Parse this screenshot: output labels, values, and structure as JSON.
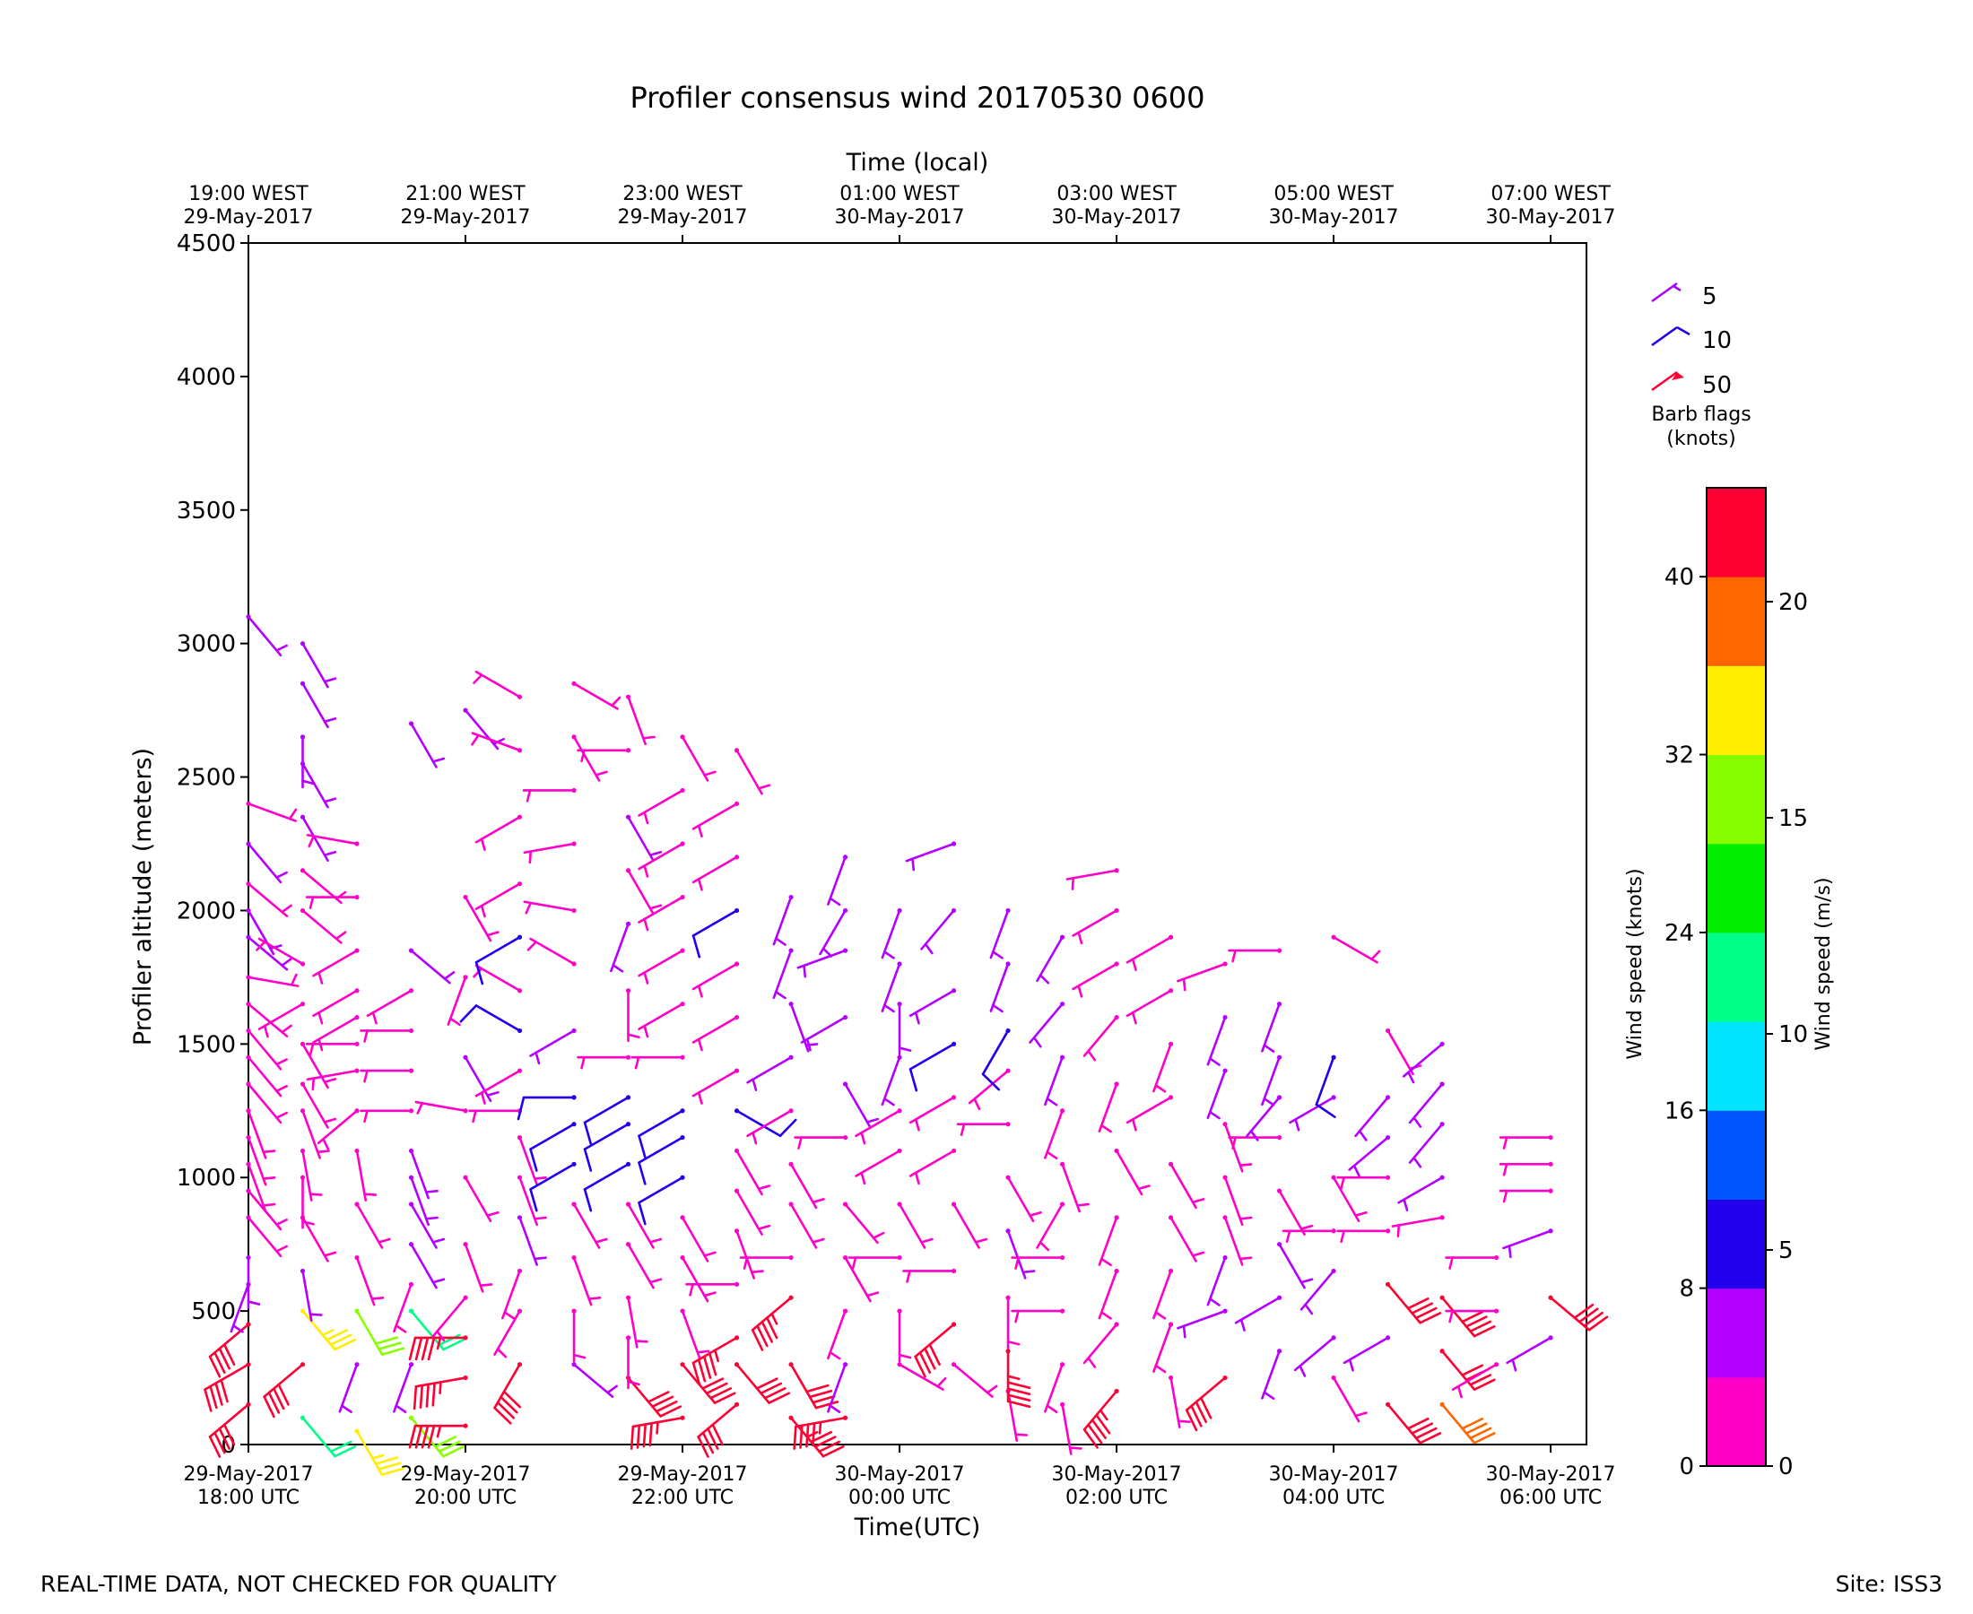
{
  "chart_data": {
    "type": "wind-barb",
    "title": "Profiler consensus wind 20170530 0600",
    "top_axis_label": "Time (local)",
    "xlabel": "Time(UTC)",
    "ylabel": "Profiler altitude (meters)",
    "x_unit": "hours since 29-May-2017 18:00 UTC",
    "xlim": [
      0,
      12.33
    ],
    "ylim": [
      0,
      4500
    ],
    "y_ticks": [
      "0",
      "500",
      "1000",
      "1500",
      "2000",
      "2500",
      "3000",
      "3500",
      "4000",
      "4500"
    ],
    "bottom_ticks": [
      {
        "x": 0,
        "line1": "29-May-2017",
        "line2": "18:00 UTC"
      },
      {
        "x": 2,
        "line1": "29-May-2017",
        "line2": "20:00 UTC"
      },
      {
        "x": 4,
        "line1": "29-May-2017",
        "line2": "22:00 UTC"
      },
      {
        "x": 6,
        "line1": "30-May-2017",
        "line2": "00:00 UTC"
      },
      {
        "x": 8,
        "line1": "30-May-2017",
        "line2": "02:00 UTC"
      },
      {
        "x": 10,
        "line1": "30-May-2017",
        "line2": "04:00 UTC"
      },
      {
        "x": 12,
        "line1": "30-May-2017",
        "line2": "06:00 UTC"
      }
    ],
    "top_ticks": [
      {
        "x": 0,
        "line1": "19:00 WEST",
        "line2": "29-May-2017"
      },
      {
        "x": 2,
        "line1": "21:00 WEST",
        "line2": "29-May-2017"
      },
      {
        "x": 4,
        "line1": "23:00 WEST",
        "line2": "29-May-2017"
      },
      {
        "x": 6,
        "line1": "01:00 WEST",
        "line2": "30-May-2017"
      },
      {
        "x": 8,
        "line1": "03:00 WEST",
        "line2": "30-May-2017"
      },
      {
        "x": 10,
        "line1": "05:00 WEST",
        "line2": "30-May-2017"
      },
      {
        "x": 12,
        "line1": "07:00 WEST",
        "line2": "30-May-2017"
      }
    ],
    "barb_legend": {
      "items": [
        {
          "label": "5",
          "speed": 5,
          "color": "#aa00ff"
        },
        {
          "label": "10",
          "speed": 10,
          "color": "#2200ee"
        },
        {
          "label": "50",
          "speed": 50,
          "color": "#ff0033"
        }
      ],
      "title_line1": "Barb flags",
      "title_line2": "(knots)"
    },
    "colorbar": {
      "left_label": "Wind speed (knots)",
      "right_label": "Wind speed (m/s)",
      "knots_ticks": [
        "0",
        "8",
        "16",
        "24",
        "32",
        "40"
      ],
      "ms_ticks": [
        "0",
        "5",
        "10",
        "15",
        "20"
      ],
      "max_knots": 44,
      "colors": [
        "#ff00c8",
        "#b400ff",
        "#2200ee",
        "#0055ff",
        "#00e5ff",
        "#00ff88",
        "#00ee00",
        "#88ff00",
        "#ffee00",
        "#ff6600",
        "#ff0033"
      ]
    },
    "series": [
      {
        "time": 0.0,
        "heights": [
          150,
          300,
          450,
          600,
          700,
          850,
          950,
          1050,
          1150,
          1250,
          1350,
          1450,
          1550,
          1650,
          1750,
          1900,
          2000,
          2100,
          2250,
          2400,
          3100
        ],
        "speeds": [
          42,
          42,
          42,
          5,
          4,
          3,
          3,
          3,
          3,
          3,
          3,
          3,
          3,
          3,
          3,
          4,
          4,
          3,
          4,
          3,
          5
        ],
        "dirs": [
          230,
          240,
          230,
          200,
          180,
          140,
          140,
          160,
          160,
          160,
          140,
          140,
          140,
          130,
          100,
          130,
          150,
          130,
          140,
          110,
          140
        ]
      },
      {
        "time": 0.5,
        "heights": [
          100,
          300,
          500,
          650,
          850,
          1000,
          1100,
          1250,
          1350,
          1500,
          1650,
          1800,
          2000,
          2150,
          2350,
          2550,
          2650,
          2850,
          3000
        ],
        "speeds": [
          22,
          42,
          33,
          5,
          3,
          3,
          3,
          3,
          3,
          3,
          3,
          3,
          3,
          3,
          4,
          4,
          4,
          6,
          6
        ],
        "dirs": [
          140,
          230,
          140,
          170,
          150,
          180,
          170,
          160,
          150,
          150,
          240,
          300,
          130,
          130,
          150,
          150,
          180,
          150,
          150
        ]
      },
      {
        "time": 1.0,
        "heights": [
          50,
          300,
          500,
          700,
          900,
          1100,
          1250,
          1400,
          1500,
          1600,
          1700,
          1850,
          2050,
          2250
        ],
        "speeds": [
          34,
          5,
          28,
          3,
          3,
          3,
          3,
          3,
          3,
          3,
          3,
          3,
          3,
          3
        ],
        "dirs": [
          150,
          200,
          150,
          160,
          150,
          170,
          230,
          260,
          270,
          240,
          240,
          240,
          270,
          280
        ]
      },
      {
        "time": 1.5,
        "heights": [
          100,
          300,
          500,
          600,
          750,
          900,
          1000,
          1100,
          1250,
          1400,
          1550,
          1700,
          1850,
          2700
        ],
        "speeds": [
          30,
          5,
          21,
          3,
          5,
          5,
          5,
          5,
          3,
          3,
          3,
          3,
          5,
          4
        ],
        "dirs": [
          140,
          200,
          140,
          200,
          150,
          150,
          160,
          160,
          270,
          270,
          270,
          240,
          130,
          150
        ]
      },
      {
        "time": 2.0,
        "heights": [
          70,
          250,
          400,
          550,
          750,
          1000,
          1250,
          1450,
          1750,
          2050,
          2750
        ],
        "speeds": [
          44,
          44,
          44,
          3,
          3,
          3,
          3,
          5,
          3,
          3,
          4
        ],
        "dirs": [
          270,
          260,
          270,
          220,
          160,
          150,
          280,
          150,
          200,
          150,
          140
        ]
      },
      {
        "time": 2.5,
        "heights": [
          300,
          500,
          650,
          850,
          1000,
          1150,
          1250,
          1400,
          1550,
          1700,
          1900,
          2100,
          2350,
          2600,
          2800
        ],
        "speeds": [
          42,
          3,
          3,
          5,
          3,
          3,
          3,
          3,
          8,
          3,
          8,
          3,
          3,
          3,
          3
        ],
        "dirs": [
          210,
          210,
          200,
          160,
          160,
          160,
          270,
          240,
          300,
          300,
          240,
          240,
          240,
          290,
          300
        ]
      },
      {
        "time": 3.0,
        "heights": [
          300,
          500,
          700,
          900,
          1050,
          1200,
          1300,
          1550,
          1800,
          2000,
          2250,
          2450,
          2650,
          2850
        ],
        "speeds": [
          5,
          3,
          3,
          3,
          8,
          8,
          8,
          5,
          3,
          3,
          3,
          3,
          3,
          3
        ],
        "dirs": [
          130,
          180,
          160,
          150,
          240,
          240,
          270,
          240,
          300,
          280,
          260,
          270,
          150,
          120
        ]
      },
      {
        "time": 3.5,
        "heights": [
          250,
          400,
          550,
          750,
          900,
          1050,
          1200,
          1300,
          1450,
          1700,
          1950,
          2150,
          2350,
          2600,
          2800
        ],
        "speeds": [
          40,
          3,
          3,
          3,
          3,
          8,
          8,
          8,
          3,
          3,
          5,
          3,
          4,
          3,
          3
        ],
        "dirs": [
          140,
          180,
          170,
          150,
          150,
          240,
          240,
          240,
          270,
          180,
          200,
          150,
          150,
          270,
          160
        ]
      },
      {
        "time": 4.0,
        "heights": [
          100,
          300,
          500,
          700,
          850,
          1000,
          1150,
          1250,
          1450,
          1650,
          1850,
          2050,
          2250,
          2450,
          2650
        ],
        "speeds": [
          44,
          42,
          3,
          3,
          3,
          8,
          8,
          8,
          3,
          3,
          3,
          3,
          3,
          3,
          3
        ],
        "dirs": [
          260,
          140,
          160,
          150,
          150,
          240,
          240,
          240,
          270,
          240,
          240,
          240,
          240,
          240,
          150
        ]
      },
      {
        "time": 4.5,
        "heights": [
          150,
          300,
          400,
          600,
          800,
          950,
          1100,
          1250,
          1400,
          1600,
          1800,
          2000,
          2200,
          2400,
          2600
        ],
        "speeds": [
          42,
          40,
          44,
          3,
          3,
          3,
          3,
          8,
          3,
          3,
          3,
          8,
          3,
          3,
          3
        ],
        "dirs": [
          230,
          140,
          240,
          270,
          160,
          150,
          150,
          120,
          240,
          240,
          240,
          240,
          240,
          240,
          150
        ]
      },
      {
        "time": 5.0,
        "heights": [
          100,
          300,
          550,
          700,
          900,
          1050,
          1250,
          1450,
          1650,
          1850,
          2050
        ],
        "speeds": [
          44,
          42,
          44,
          3,
          3,
          3,
          3,
          4,
          4,
          4,
          4
        ],
        "dirs": [
          140,
          150,
          230,
          270,
          150,
          150,
          240,
          240,
          160,
          200,
          200
        ]
      },
      {
        "time": 5.5,
        "heights": [
          100,
          300,
          500,
          700,
          900,
          1150,
          1350,
          1600,
          1850,
          2000,
          2200
        ],
        "speeds": [
          44,
          5,
          3,
          3,
          3,
          3,
          5,
          5,
          4,
          4,
          4
        ],
        "dirs": [
          260,
          200,
          200,
          150,
          140,
          270,
          150,
          240,
          250,
          210,
          200
        ]
      },
      {
        "time": 6.0,
        "heights": [
          300,
          500,
          700,
          900,
          1100,
          1250,
          1450,
          1650,
          1800,
          2000
        ],
        "speeds": [
          3,
          3,
          3,
          3,
          3,
          3,
          4,
          4,
          4,
          4
        ],
        "dirs": [
          120,
          180,
          270,
          150,
          240,
          240,
          200,
          180,
          200,
          200
        ]
      },
      {
        "time": 6.5,
        "heights": [
          300,
          450,
          650,
          900,
          1100,
          1300,
          1500,
          1700,
          2000,
          2250
        ],
        "speeds": [
          3,
          42,
          3,
          3,
          3,
          3,
          8,
          5,
          4,
          4
        ],
        "dirs": [
          130,
          230,
          270,
          150,
          240,
          240,
          240,
          240,
          220,
          250
        ]
      },
      {
        "time": 7.0,
        "heights": [
          200,
          350,
          550,
          800,
          1000,
          1200,
          1400,
          1550,
          1800,
          2000
        ],
        "speeds": [
          3,
          44,
          3,
          4,
          3,
          3,
          3,
          8,
          4,
          4
        ],
        "dirs": [
          170,
          180,
          180,
          160,
          150,
          270,
          230,
          210,
          200,
          200
        ]
      },
      {
        "time": 7.5,
        "heights": [
          150,
          300,
          500,
          700,
          900,
          1050,
          1250,
          1450,
          1650,
          1900
        ],
        "speeds": [
          3,
          3,
          3,
          3,
          3,
          3,
          3,
          4,
          4,
          4
        ],
        "dirs": [
          170,
          200,
          270,
          270,
          210,
          160,
          200,
          200,
          220,
          210
        ]
      },
      {
        "time": 8.0,
        "heights": [
          200,
          450,
          650,
          850,
          1100,
          1350,
          1600,
          1800,
          2000,
          2150
        ],
        "speeds": [
          44,
          3,
          3,
          3,
          3,
          3,
          3,
          3,
          3,
          3
        ],
        "dirs": [
          220,
          220,
          200,
          200,
          150,
          200,
          220,
          240,
          240,
          260
        ]
      },
      {
        "time": 8.5,
        "heights": [
          250,
          450,
          650,
          850,
          1050,
          1300,
          1500,
          1700,
          1900
        ],
        "speeds": [
          3,
          3,
          3,
          3,
          3,
          3,
          3,
          3,
          3
        ],
        "dirs": [
          170,
          200,
          200,
          150,
          150,
          240,
          200,
          240,
          240
        ]
      },
      {
        "time": 9.0,
        "heights": [
          250,
          500,
          700,
          850,
          1000,
          1200,
          1400,
          1600,
          1800
        ],
        "speeds": [
          42,
          4,
          4,
          3,
          3,
          3,
          4,
          4,
          3
        ],
        "dirs": [
          230,
          250,
          200,
          160,
          160,
          160,
          200,
          200,
          250
        ]
      },
      {
        "time": 9.5,
        "heights": [
          350,
          550,
          750,
          950,
          1150,
          1300,
          1450,
          1650,
          1850
        ],
        "speeds": [
          4,
          4,
          4,
          3,
          3,
          5,
          5,
          4,
          3
        ],
        "dirs": [
          200,
          240,
          150,
          150,
          270,
          220,
          200,
          200,
          270
        ]
      },
      {
        "time": 10.0,
        "heights": [
          250,
          400,
          650,
          800,
          1000,
          1300,
          1450,
          1900
        ],
        "speeds": [
          3,
          4,
          5,
          3,
          3,
          5,
          8,
          3
        ],
        "dirs": [
          150,
          230,
          220,
          270,
          150,
          240,
          200,
          120
        ]
      },
      {
        "time": 10.5,
        "heights": [
          150,
          400,
          600,
          800,
          1000,
          1150,
          1300,
          1550
        ],
        "speeds": [
          42,
          5,
          42,
          3,
          3,
          4,
          4,
          3
        ],
        "dirs": [
          140,
          240,
          140,
          270,
          270,
          230,
          220,
          150
        ]
      },
      {
        "time": 11.0,
        "heights": [
          150,
          350,
          550,
          850,
          1000,
          1200,
          1350,
          1500
        ],
        "speeds": [
          38,
          42,
          42,
          3,
          4,
          4,
          4,
          4
        ],
        "dirs": [
          140,
          140,
          140,
          260,
          240,
          220,
          220,
          230
        ]
      },
      {
        "time": 11.5,
        "heights": [
          300,
          500,
          700
        ],
        "speeds": [
          3,
          3,
          3
        ],
        "dirs": [
          240,
          270,
          270
        ]
      },
      {
        "time": 12.0,
        "heights": [
          400,
          550,
          800,
          950,
          1050,
          1150
        ],
        "speeds": [
          4,
          42,
          5,
          3,
          3,
          3
        ],
        "dirs": [
          240,
          130,
          250,
          270,
          270,
          270
        ]
      }
    ]
  },
  "footer": {
    "left": "REAL-TIME DATA, NOT CHECKED FOR QUALITY",
    "right": "Site: ISS3"
  }
}
